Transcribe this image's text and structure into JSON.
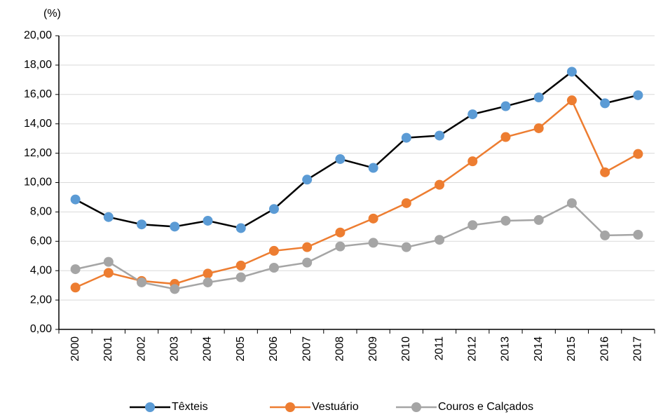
{
  "chart_data": {
    "type": "line",
    "y_label": "(%)",
    "categories": [
      "2000",
      "2001",
      "2002",
      "2003",
      "2004",
      "2005",
      "2006",
      "2007",
      "2008",
      "2009",
      "2010",
      "2011",
      "2012",
      "2013",
      "2014",
      "2015",
      "2016",
      "2017"
    ],
    "series": [
      {
        "name": "Têxteis",
        "color": "#5b9bd5",
        "line_color": "#000000",
        "values": [
          8.85,
          7.65,
          7.15,
          7.0,
          7.4,
          6.9,
          8.2,
          10.2,
          11.6,
          11.0,
          13.05,
          13.2,
          14.65,
          15.2,
          15.8,
          17.55,
          15.4,
          15.95
        ]
      },
      {
        "name": "Vestuário",
        "color": "#ed7d31",
        "line_color": "#ed7d31",
        "values": [
          2.85,
          3.85,
          3.3,
          3.1,
          3.8,
          4.35,
          5.35,
          5.6,
          6.6,
          7.55,
          8.6,
          9.85,
          11.45,
          13.1,
          13.7,
          15.6,
          10.7,
          11.95
        ]
      },
      {
        "name": "Couros e Calçados",
        "color": "#a5a5a5",
        "line_color": "#a5a5a5",
        "values": [
          4.1,
          4.6,
          3.2,
          2.75,
          3.2,
          3.55,
          4.2,
          4.55,
          5.65,
          5.9,
          5.6,
          6.1,
          7.1,
          7.4,
          7.45,
          8.6,
          6.4,
          6.45
        ]
      }
    ],
    "ylim": [
      0,
      20
    ],
    "yticks": [
      {
        "value": 0,
        "label": "0,00"
      },
      {
        "value": 2,
        "label": "2,00"
      },
      {
        "value": 4,
        "label": "4,00"
      },
      {
        "value": 6,
        "label": "6,00"
      },
      {
        "value": 8,
        "label": "8,00"
      },
      {
        "value": 10,
        "label": "10,00"
      },
      {
        "value": 12,
        "label": "12,00"
      },
      {
        "value": 14,
        "label": "14,00"
      },
      {
        "value": 16,
        "label": "16,00"
      },
      {
        "value": 18,
        "label": "18,00"
      },
      {
        "value": 20,
        "label": "20,00"
      }
    ],
    "grid": true,
    "legend": "bottom"
  }
}
